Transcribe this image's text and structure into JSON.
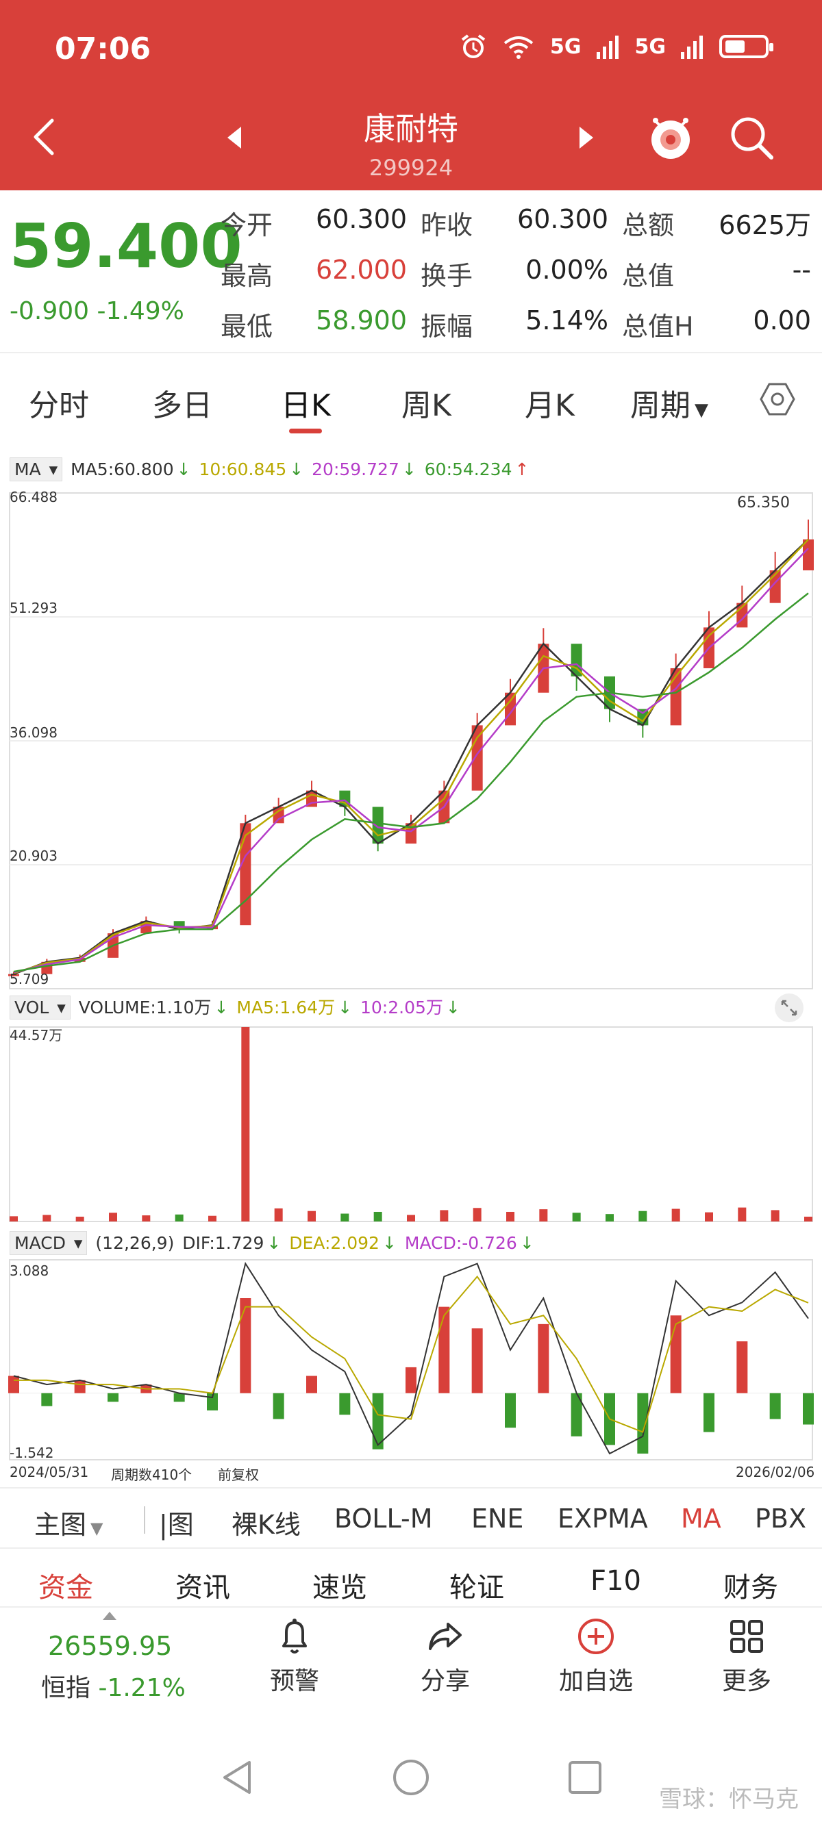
{
  "status": {
    "time": "07:06",
    "net1": "5G",
    "net2": "5G"
  },
  "header": {
    "name": "康耐特",
    "code": "299924"
  },
  "quote": {
    "price": "59.400",
    "change": "-0.900",
    "change_pct": "-1.49%",
    "rows": [
      {
        "l1": "今开",
        "v1": "60.300",
        "l2": "昨收",
        "v2": "60.300",
        "l3": "总额",
        "v3": "6625万"
      },
      {
        "l1": "最高",
        "v1": "62.000",
        "l2": "换手",
        "v2": "0.00%",
        "l3": "总值",
        "v3": "--"
      },
      {
        "l1": "最低",
        "v1": "58.900",
        "l2": "振幅",
        "v2": "5.14%",
        "l3": "总值H",
        "v3": "0.00"
      }
    ]
  },
  "tabs": [
    "分时",
    "多日",
    "日K",
    "周K",
    "月K",
    "周期"
  ],
  "ma_legend": {
    "label": "MA",
    "ma5": "MA5:60.800",
    "ma10": "10:60.845",
    "ma20": "20:59.727",
    "ma60": "60:54.234"
  },
  "vol_legend": {
    "label": "VOL",
    "vol": "VOLUME:1.10万",
    "ma5": "MA5:1.64万",
    "ma10": "10:2.05万"
  },
  "macd_legend": {
    "label": "MACD",
    "params": "(12,26,9)",
    "dif": "DIF:1.729",
    "dea": "DEA:2.092",
    "macd": "MACD:-0.726"
  },
  "price_axis": [
    "66.488",
    "51.293",
    "36.098",
    "20.903",
    "5.709"
  ],
  "high_mark": "65.350",
  "vol_axis_top": "44.57万",
  "macd_axis": [
    "3.088",
    "-1.542"
  ],
  "date_start": "2024/05/31",
  "period_count": "周期数410个",
  "adjust": "前复权",
  "date_end": "2026/02/06",
  "indicators": [
    "主图",
    "|图",
    "裸K线",
    "BOLL-M",
    "ENE",
    "EXPMA",
    "MA",
    "PBX"
  ],
  "subnav": [
    "资金",
    "资讯",
    "速览",
    "轮证",
    "F10",
    "财务"
  ],
  "bottom": {
    "index_value": "26559.95",
    "index_name": "恒指",
    "index_change": "-1.21%",
    "items": [
      "预警",
      "分享",
      "加自选",
      "更多"
    ]
  },
  "watermark": "雪球：怀马克",
  "colors": {
    "brand": "#d8403a",
    "up": "#d8403a",
    "down": "#3a9a2e",
    "ma10": "#b9a800",
    "ma20": "#b43cc8",
    "ma60": "#3a9a2e"
  },
  "chart_data": [
    {
      "type": "line",
      "title": "MA",
      "ylim": [
        5.709,
        66.488
      ],
      "x_range": [
        "2024/05/31",
        "2026/02/06"
      ],
      "series": [
        {
          "name": "MA5:60.800",
          "values": [
            7.5,
            9.0,
            9.5,
            12.5,
            14.0,
            13.0,
            13.5,
            26.0,
            28.0,
            30.0,
            28.0,
            23.5,
            26.0,
            30.0,
            38.0,
            42.0,
            48.0,
            44.0,
            40.0,
            38.0,
            45.0,
            50.0,
            53.0,
            57.0,
            60.8
          ]
        },
        {
          "name": "10:60.845",
          "values": [
            7.6,
            8.9,
            9.4,
            12.3,
            13.8,
            13.2,
            13.4,
            24.5,
            27.5,
            29.5,
            28.5,
            24.5,
            25.5,
            29.0,
            36.5,
            41.0,
            46.5,
            45.0,
            41.0,
            38.5,
            44.0,
            49.0,
            52.5,
            56.5,
            60.8
          ]
        },
        {
          "name": "20:59.727",
          "values": [
            7.7,
            8.7,
            9.3,
            12.0,
            13.5,
            13.3,
            13.2,
            22.0,
            26.5,
            28.5,
            28.8,
            25.5,
            25.0,
            28.0,
            34.5,
            39.5,
            45.0,
            45.5,
            42.0,
            39.5,
            42.5,
            47.5,
            51.0,
            55.5,
            59.7
          ]
        },
        {
          "name": "60:54.234",
          "values": [
            7.8,
            8.5,
            9.0,
            11.0,
            12.5,
            13.0,
            13.0,
            16.5,
            20.5,
            24.0,
            26.5,
            26.0,
            25.5,
            26.0,
            29.0,
            33.5,
            38.5,
            41.5,
            42.0,
            41.5,
            42.0,
            44.5,
            47.5,
            51.0,
            54.2
          ]
        }
      ],
      "annotations": [
        "65.350"
      ]
    },
    {
      "type": "bar",
      "title": "VOL",
      "ylim": [
        0,
        44.57
      ],
      "series": [
        {
          "name": "VOLUME:1.10万",
          "values": [
            1.2,
            1.5,
            1.1,
            2.0,
            1.4,
            1.6,
            1.3,
            44.57,
            3.0,
            2.4,
            1.8,
            2.2,
            1.5,
            2.6,
            3.1,
            2.2,
            2.8,
            2.0,
            1.7,
            2.4,
            2.9,
            2.1,
            3.2,
            2.6,
            1.1
          ]
        },
        {
          "name": "MA5:1.64万",
          "values": []
        },
        {
          "name": "10:2.05万",
          "values": []
        }
      ]
    },
    {
      "type": "bar",
      "title": "MACD",
      "ylim": [
        -1.542,
        3.088
      ],
      "series": [
        {
          "name": "MACD:-0.726",
          "values": [
            0.4,
            -0.3,
            0.3,
            -0.2,
            0.2,
            -0.2,
            -0.4,
            2.2,
            -0.6,
            0.4,
            -0.5,
            -1.3,
            0.6,
            2.0,
            1.5,
            -0.8,
            1.6,
            -1.0,
            -1.2,
            -1.4,
            1.8,
            -0.9,
            1.2,
            -0.6,
            -0.726
          ]
        },
        {
          "name": "DIF:1.729",
          "values": [
            0.4,
            0.2,
            0.3,
            0.1,
            0.2,
            0.0,
            -0.1,
            3.0,
            1.8,
            1.0,
            0.5,
            -1.2,
            -0.5,
            2.7,
            3.0,
            1.0,
            2.2,
            0.0,
            -1.4,
            -1.0,
            2.6,
            1.8,
            2.1,
            2.8,
            1.729
          ]
        },
        {
          "name": "DEA:2.092",
          "values": [
            0.3,
            0.3,
            0.2,
            0.2,
            0.1,
            0.1,
            0.0,
            2.0,
            2.0,
            1.3,
            0.8,
            -0.5,
            -0.6,
            1.8,
            2.7,
            1.6,
            1.8,
            0.8,
            -0.6,
            -0.9,
            1.6,
            2.0,
            1.9,
            2.4,
            2.092
          ]
        }
      ]
    }
  ]
}
